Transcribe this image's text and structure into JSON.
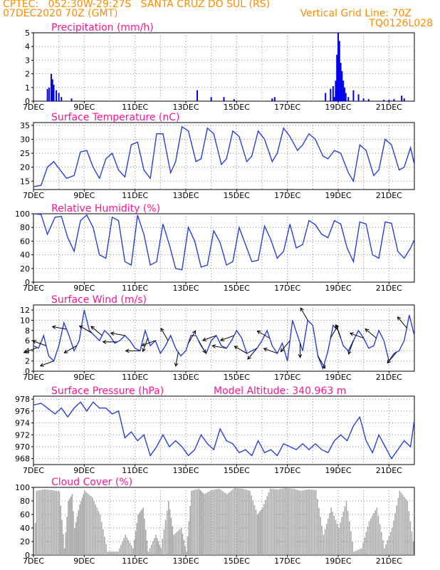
{
  "header": {
    "line1": "CPTEC:   052:30W-29:27S   SANTA CRUZ DO SUL (RS)",
    "line2": "07DEC2020 70Z (GMT)",
    "vgrid": "Vertical Grid Line: 70Z",
    "code": "TQ0126L028"
  },
  "colors": {
    "header": "#ff8c00",
    "title": "#ff1493",
    "line": "#2a3fd9",
    "bar": "#0000ee",
    "cloud": "#a9a9a9"
  },
  "chart_data": [
    {
      "type": "bar",
      "title": "Precipitation (mm/h)",
      "ylim": [
        0,
        5
      ],
      "yticks": [
        0,
        1,
        2,
        3,
        4,
        5
      ],
      "xticks": [
        "7DEC",
        "9DEC",
        "11DEC",
        "13DEC",
        "15DEC",
        "17DEC",
        "19DEC",
        "21DEC"
      ],
      "x_days": [
        0,
        15
      ],
      "x": [
        0.55,
        0.62,
        0.7,
        0.75,
        0.8,
        0.9,
        1.0,
        1.1,
        1.5,
        6.45,
        7.0,
        7.5,
        7.9,
        9.4,
        9.5,
        11.5,
        11.7,
        11.8,
        11.85,
        11.9,
        11.95,
        12.0,
        12.05,
        12.1,
        12.15,
        12.2,
        12.25,
        12.3,
        12.4,
        12.6,
        12.8,
        13.0,
        13.2,
        13.8,
        14.0,
        14.2,
        14.5,
        14.6
      ],
      "y": [
        0.9,
        1.0,
        2.0,
        1.6,
        1.2,
        0.8,
        0.6,
        0.3,
        0.2,
        0.8,
        0.3,
        0.3,
        0.15,
        0.2,
        0.3,
        0.6,
        0.9,
        1.1,
        0.3,
        1.5,
        3.4,
        5.0,
        4.4,
        2.8,
        2.2,
        1.5,
        1.0,
        0.6,
        0.3,
        0.8,
        0.5,
        0.2,
        0.15,
        0.1,
        0.1,
        0.15,
        0.4,
        0.2
      ]
    },
    {
      "type": "line",
      "title": "Surface Temperature (nC)",
      "ylim": [
        12,
        36
      ],
      "yticks": [
        15,
        20,
        25,
        30,
        35
      ],
      "xticks": [
        "7DEC",
        "9DEC",
        "11DEC",
        "13DEC",
        "15DEC",
        "17DEC",
        "19DEC",
        "21DEC"
      ],
      "x_days": [
        0,
        15
      ],
      "x": [
        0,
        0.3,
        0.55,
        0.8,
        1.05,
        1.3,
        1.6,
        1.85,
        2.1,
        2.35,
        2.6,
        2.85,
        3.1,
        3.35,
        3.6,
        3.85,
        4.1,
        4.35,
        4.6,
        4.85,
        5.1,
        5.4,
        5.6,
        5.85,
        6.1,
        6.4,
        6.6,
        6.85,
        7.1,
        7.4,
        7.6,
        7.85,
        8.1,
        8.4,
        8.6,
        8.85,
        9.1,
        9.4,
        9.6,
        9.85,
        10.1,
        10.4,
        10.6,
        10.85,
        11.1,
        11.4,
        11.6,
        11.85,
        12.1,
        12.4,
        12.6,
        12.85,
        13.1,
        13.4,
        13.6,
        13.85,
        14.1,
        14.4,
        14.6,
        14.85,
        15.0
      ],
      "y": [
        13,
        13.5,
        20,
        22,
        19,
        16,
        17,
        25.5,
        26,
        20,
        16,
        23,
        25,
        19,
        16.5,
        28,
        29,
        19,
        16,
        32,
        32,
        18,
        22,
        34.5,
        33,
        22,
        23,
        34,
        32,
        21,
        23,
        33,
        31,
        22,
        24,
        33,
        30,
        22,
        25,
        34,
        31,
        26,
        28,
        32,
        30,
        24,
        23,
        26,
        25,
        18,
        15,
        28,
        26,
        17,
        19,
        30,
        28,
        19,
        20,
        27,
        21
      ]
    },
    {
      "type": "line",
      "title": "Relative Humidity (%)",
      "ylim": [
        0,
        100
      ],
      "yticks": [
        0,
        20,
        40,
        60,
        80,
        100
      ],
      "xticks": [
        "7DEC",
        "9DEC",
        "11DEC",
        "13DEC",
        "15DEC",
        "17DEC",
        "19DEC",
        "21DEC"
      ],
      "x_days": [
        0,
        15
      ],
      "x": [
        0,
        0.3,
        0.55,
        0.85,
        1.1,
        1.35,
        1.6,
        1.85,
        2.1,
        2.35,
        2.6,
        2.85,
        3.1,
        3.35,
        3.6,
        3.85,
        4.1,
        4.35,
        4.6,
        4.85,
        5.1,
        5.35,
        5.6,
        5.85,
        6.1,
        6.35,
        6.6,
        6.85,
        7.1,
        7.35,
        7.6,
        7.85,
        8.1,
        8.35,
        8.6,
        8.85,
        9.1,
        9.35,
        9.6,
        9.85,
        10.1,
        10.35,
        10.6,
        10.85,
        11.1,
        11.35,
        11.6,
        11.85,
        12.1,
        12.35,
        12.6,
        12.85,
        13.1,
        13.35,
        13.6,
        13.85,
        14.1,
        14.35,
        14.6,
        14.85,
        15.0
      ],
      "y": [
        100,
        99,
        70,
        95,
        96,
        65,
        45,
        90,
        98,
        80,
        40,
        35,
        95,
        90,
        30,
        25,
        98,
        70,
        25,
        30,
        85,
        55,
        20,
        18,
        80,
        60,
        22,
        25,
        75,
        58,
        25,
        30,
        80,
        55,
        30,
        32,
        82,
        62,
        35,
        45,
        85,
        50,
        55,
        90,
        84,
        70,
        65,
        90,
        85,
        50,
        30,
        88,
        85,
        40,
        35,
        88,
        86,
        45,
        35,
        50,
        62
      ]
    },
    {
      "type": "line",
      "title": "Surface Wind (m/s)",
      "ylim": [
        0,
        13
      ],
      "yticks": [
        0,
        2,
        4,
        6,
        8,
        10,
        12
      ],
      "xticks": [
        "7DEC",
        "9DEC",
        "11DEC",
        "13DEC",
        "15DEC",
        "17DEC",
        "19DEC",
        "21DEC"
      ],
      "x_days": [
        0,
        15
      ],
      "x": [
        0,
        0.2,
        0.4,
        0.6,
        0.8,
        1.0,
        1.2,
        1.4,
        1.6,
        1.8,
        2.0,
        2.2,
        2.4,
        2.6,
        2.8,
        3.0,
        3.2,
        3.4,
        3.6,
        3.8,
        4.0,
        4.2,
        4.4,
        4.6,
        4.8,
        5.0,
        5.2,
        5.4,
        5.6,
        5.8,
        6.0,
        6.2,
        6.4,
        6.6,
        6.8,
        7.0,
        7.2,
        7.4,
        7.6,
        7.8,
        8.0,
        8.2,
        8.4,
        8.6,
        8.8,
        9.0,
        9.2,
        9.4,
        9.6,
        9.8,
        10.0,
        10.2,
        10.4,
        10.6,
        10.8,
        11.0,
        11.2,
        11.4,
        11.6,
        11.8,
        12.0,
        12.2,
        12.4,
        12.6,
        12.8,
        13.0,
        13.2,
        13.4,
        13.6,
        13.8,
        14.0,
        14.2,
        14.4,
        14.6,
        14.8,
        15.0
      ],
      "y": [
        5,
        4.5,
        7,
        3,
        2,
        5,
        9.5,
        7,
        4,
        6,
        12,
        8,
        7,
        6,
        8,
        7,
        5.5,
        6,
        7,
        6,
        4.5,
        4,
        8,
        5,
        6,
        3.5,
        5,
        7,
        4.5,
        3,
        4,
        7,
        7,
        5,
        3.5,
        6,
        7,
        5,
        4.5,
        6,
        8,
        6.5,
        3.5,
        4,
        4.5,
        6,
        8,
        5,
        3.5,
        5.5,
        2,
        10,
        7,
        4,
        10,
        9,
        3,
        0.5,
        4,
        9,
        8,
        5,
        4,
        6,
        8,
        6.5,
        4.5,
        5,
        8,
        6,
        2,
        3.5,
        4,
        6,
        11,
        7
      ]
    },
    {
      "type": "line",
      "title": "Surface Pressure (hPa)",
      "annotation": "Model Altitude: 340.963  m",
      "ylim": [
        967,
        978.5
      ],
      "yticks": [
        968,
        970,
        972,
        974,
        976,
        978
      ],
      "xticks": [
        "7DEC",
        "9DEC",
        "11DEC",
        "13DEC",
        "15DEC",
        "17DEC",
        "19DEC",
        "21DEC"
      ],
      "x_days": [
        0,
        15
      ],
      "x": [
        0,
        0.3,
        0.55,
        0.85,
        1.1,
        1.35,
        1.6,
        1.85,
        2.1,
        2.35,
        2.6,
        2.85,
        3.1,
        3.35,
        3.6,
        3.85,
        4.1,
        4.35,
        4.6,
        4.85,
        5.1,
        5.35,
        5.6,
        5.85,
        6.1,
        6.35,
        6.6,
        6.85,
        7.1,
        7.35,
        7.6,
        7.85,
        8.1,
        8.35,
        8.6,
        8.85,
        9.1,
        9.35,
        9.6,
        9.85,
        10.1,
        10.35,
        10.6,
        10.85,
        11.1,
        11.35,
        11.6,
        11.85,
        12.1,
        12.35,
        12.6,
        12.85,
        13.1,
        13.35,
        13.6,
        13.85,
        14.1,
        14.35,
        14.6,
        14.85,
        15.0
      ],
      "y": [
        977,
        977.3,
        976.5,
        975.5,
        976.5,
        975,
        976.5,
        977.5,
        976,
        977.5,
        976.5,
        976.5,
        975.5,
        976,
        971.5,
        972.5,
        971,
        972,
        968.5,
        970,
        972,
        970,
        971,
        970,
        968.5,
        969.5,
        972,
        970.5,
        969.5,
        973,
        971,
        970.5,
        969,
        969.5,
        968.5,
        971,
        969,
        969.5,
        968.5,
        970.5,
        970,
        969.5,
        970.5,
        969.5,
        970.5,
        969.5,
        969,
        971,
        972,
        971,
        973.5,
        975,
        971,
        969,
        972,
        970,
        968,
        969.5,
        971,
        970,
        974.5
      ]
    },
    {
      "type": "area",
      "title": "Cloud Cover (%)",
      "ylim": [
        0,
        100
      ],
      "yticks": [
        0,
        20,
        40,
        60,
        80,
        100
      ],
      "xticks": [
        "7DEC",
        "9DEC",
        "11DEC",
        "13DEC",
        "15DEC",
        "17DEC",
        "19DEC",
        "21DEC"
      ],
      "x_days": [
        0,
        15
      ],
      "x": [
        0,
        0.1,
        0.4,
        0.7,
        1.0,
        1.2,
        1.35,
        1.5,
        1.6,
        1.8,
        2.0,
        2.3,
        2.6,
        2.9,
        3.3,
        3.6,
        3.9,
        4.1,
        4.3,
        4.5,
        4.8,
        5.0,
        5.3,
        5.5,
        5.8,
        6.0,
        6.2,
        6.5,
        6.7,
        7.0,
        7.3,
        7.6,
        7.9,
        8.2,
        8.5,
        8.8,
        9.0,
        9.3,
        9.6,
        9.9,
        10.2,
        10.5,
        10.8,
        11.1,
        11.4,
        11.7,
        12.0,
        12.3,
        12.6,
        12.9,
        13.2,
        13.5,
        13.8,
        14.1,
        14.4,
        14.7,
        15.0
      ],
      "y": [
        0,
        95,
        97,
        96,
        94,
        10,
        80,
        90,
        40,
        75,
        95,
        85,
        60,
        5,
        5,
        30,
        10,
        60,
        70,
        5,
        30,
        10,
        80,
        30,
        40,
        5,
        95,
        98,
        90,
        96,
        98,
        90,
        99,
        98,
        95,
        60,
        70,
        98,
        97,
        99,
        98,
        95,
        97,
        96,
        30,
        70,
        40,
        80,
        5,
        10,
        50,
        70,
        10,
        40,
        95,
        80,
        5
      ]
    }
  ],
  "wind_arrows": {
    "x": [
      0.15,
      0.5,
      0.8,
      1.3,
      1.7,
      2.3,
      2.7,
      3.3,
      3.6,
      4.2,
      4.5,
      4.8,
      5.3,
      5.7,
      6.1,
      6.5,
      7.2,
      7.6,
      7.9,
      8.4,
      8.8,
      9.3,
      9.6,
      10.1,
      10.5,
      10.8,
      11.2,
      11.7,
      12.1,
      12.6,
      13.0,
      13.5,
      14.3,
      14.7
    ],
    "angle": [
      200,
      160,
      200,
      170,
      210,
      150,
      140,
      180,
      170,
      180,
      250,
      200,
      120,
      260,
      60,
      300,
      200,
      170,
      200,
      150,
      230,
      150,
      160,
      230,
      270,
      120,
      300,
      60,
      110,
      250,
      160,
      140,
      230,
      130
    ]
  }
}
